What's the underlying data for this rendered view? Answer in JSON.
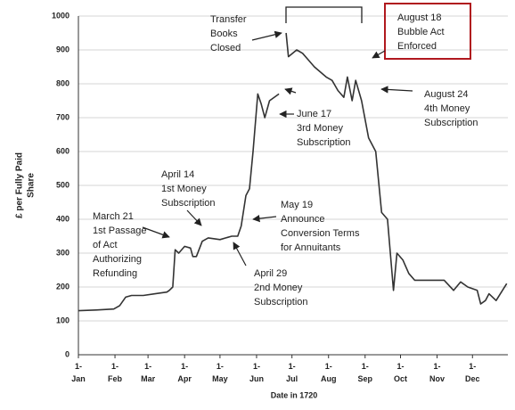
{
  "chart_data": {
    "type": "line",
    "xlabel": "Date in 1720",
    "ylabel": [
      "£ per Fully Paid",
      "Share"
    ],
    "color": "#333333",
    "grid": true,
    "xlim": [
      0,
      364
    ],
    "xticks": [
      {
        "value": 0,
        "label": "1-Jan"
      },
      {
        "value": 31,
        "label": "1-Feb"
      },
      {
        "value": 59,
        "label": "1-Mar"
      },
      {
        "value": 90,
        "label": "1-Apr"
      },
      {
        "value": 120,
        "label": "1-May"
      },
      {
        "value": 151,
        "label": "1-Jun"
      },
      {
        "value": 181,
        "label": "1-Jul"
      },
      {
        "value": 212,
        "label": "1-Aug"
      },
      {
        "value": 243,
        "label": "1-Sep"
      },
      {
        "value": 273,
        "label": "1-Oct"
      },
      {
        "value": 304,
        "label": "1-Nov"
      },
      {
        "value": 334,
        "label": "1-Dec"
      }
    ],
    "ylim": [
      0,
      1000
    ],
    "yticks": [
      0,
      100,
      200,
      300,
      400,
      500,
      600,
      700,
      800,
      900,
      1000
    ],
    "x": [
      0,
      15,
      30,
      35,
      40,
      45,
      55,
      65,
      75,
      77,
      80,
      82,
      85,
      90,
      95,
      97,
      100,
      105,
      110,
      120,
      130,
      135,
      138,
      142,
      145,
      148,
      152,
      155,
      158,
      162,
      170,
      173,
      176,
      178,
      185,
      190,
      195,
      200,
      210,
      215,
      220,
      225,
      228,
      232,
      235,
      240,
      246,
      252,
      257,
      262,
      267,
      270,
      275,
      280,
      285,
      300,
      310,
      318,
      324,
      330,
      338,
      341,
      345,
      348,
      354,
      363
    ],
    "values": [
      130,
      132,
      135,
      145,
      170,
      175,
      175,
      180,
      185,
      190,
      200,
      310,
      300,
      320,
      315,
      290,
      290,
      335,
      345,
      340,
      350,
      350,
      380,
      470,
      490,
      600,
      770,
      740,
      700,
      750,
      770,
      null,
      950,
      880,
      900,
      890,
      870,
      850,
      820,
      810,
      780,
      760,
      820,
      750,
      810,
      750,
      640,
      600,
      420,
      400,
      190,
      300,
      280,
      240,
      220,
      220,
      220,
      190,
      215,
      200,
      190,
      150,
      160,
      180,
      160,
      210
    ],
    "annotations": [
      [
        "Transfer",
        "Books",
        "Closed"
      ],
      [
        "August 18",
        "Bubble Act",
        "Enforced"
      ],
      [
        "August 24",
        "4th Money",
        "Subscription"
      ],
      [
        "June 17",
        "3rd Money",
        "Subscription"
      ],
      [
        "April 14",
        "1st Money",
        "Subscription"
      ],
      [
        "May 19",
        "Announce",
        "Conversion Terms",
        "for Annuitants"
      ],
      [
        "March 21",
        "1st Passage",
        "of Act",
        "Authorizing",
        "Refunding"
      ],
      [
        "April 29",
        "2nd Money",
        "Subscription"
      ]
    ]
  }
}
